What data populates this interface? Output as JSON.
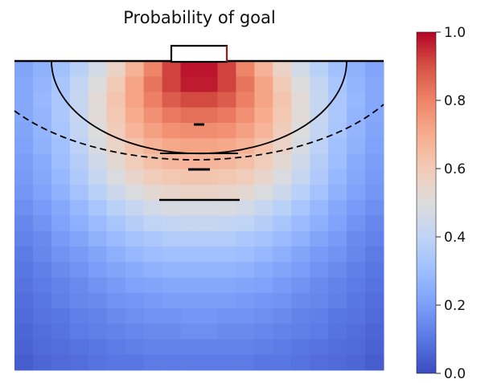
{
  "chart_data": {
    "type": "heatmap",
    "title": "Probability of goal",
    "xlabel": "",
    "ylabel": "",
    "colormap": "coolwarm",
    "colorbar": {
      "vmin": 0.0,
      "vmax": 1.0,
      "ticks": [
        0.0,
        0.2,
        0.4,
        0.6,
        0.8,
        1.0
      ],
      "tick_labels": [
        "0.0",
        "0.2",
        "0.4",
        "0.6",
        "0.8",
        "1.0"
      ],
      "colors": [
        "#3b4cc0",
        "#5977e3",
        "#7b9ff9",
        "#9ebeff",
        "#c0d4f5",
        "#dddcdc",
        "#f2cbb7",
        "#f7ac8e",
        "#ee8468",
        "#d65244",
        "#b40426"
      ]
    },
    "grid": {
      "rows": 20,
      "cols": 20,
      "origin": "top",
      "values": [
        [
          0.22,
          0.26,
          0.31,
          0.38,
          0.46,
          0.56,
          0.68,
          0.8,
          0.92,
          0.98,
          0.98,
          0.92,
          0.8,
          0.68,
          0.56,
          0.46,
          0.38,
          0.31,
          0.26,
          0.22
        ],
        [
          0.23,
          0.27,
          0.33,
          0.41,
          0.5,
          0.6,
          0.72,
          0.83,
          0.92,
          0.97,
          0.97,
          0.92,
          0.83,
          0.72,
          0.6,
          0.5,
          0.41,
          0.33,
          0.27,
          0.23
        ],
        [
          0.23,
          0.28,
          0.34,
          0.42,
          0.52,
          0.62,
          0.72,
          0.81,
          0.88,
          0.91,
          0.91,
          0.88,
          0.81,
          0.72,
          0.62,
          0.52,
          0.42,
          0.34,
          0.28,
          0.23
        ],
        [
          0.23,
          0.27,
          0.34,
          0.42,
          0.52,
          0.61,
          0.7,
          0.77,
          0.82,
          0.84,
          0.84,
          0.82,
          0.77,
          0.7,
          0.61,
          0.52,
          0.42,
          0.34,
          0.27,
          0.23
        ],
        [
          0.22,
          0.27,
          0.33,
          0.41,
          0.5,
          0.59,
          0.67,
          0.73,
          0.77,
          0.78,
          0.78,
          0.77,
          0.73,
          0.67,
          0.59,
          0.5,
          0.41,
          0.33,
          0.27,
          0.22
        ],
        [
          0.21,
          0.26,
          0.31,
          0.39,
          0.48,
          0.56,
          0.63,
          0.68,
          0.71,
          0.72,
          0.72,
          0.71,
          0.68,
          0.63,
          0.56,
          0.48,
          0.39,
          0.31,
          0.26,
          0.21
        ],
        [
          0.2,
          0.24,
          0.3,
          0.37,
          0.45,
          0.53,
          0.59,
          0.64,
          0.66,
          0.67,
          0.67,
          0.66,
          0.64,
          0.59,
          0.53,
          0.45,
          0.37,
          0.3,
          0.24,
          0.2
        ],
        [
          0.19,
          0.23,
          0.28,
          0.35,
          0.42,
          0.49,
          0.55,
          0.59,
          0.61,
          0.62,
          0.62,
          0.61,
          0.59,
          0.55,
          0.49,
          0.42,
          0.35,
          0.28,
          0.23,
          0.19
        ],
        [
          0.18,
          0.21,
          0.26,
          0.32,
          0.38,
          0.44,
          0.49,
          0.53,
          0.55,
          0.56,
          0.56,
          0.55,
          0.53,
          0.49,
          0.44,
          0.38,
          0.32,
          0.26,
          0.21,
          0.18
        ],
        [
          0.16,
          0.19,
          0.23,
          0.28,
          0.33,
          0.38,
          0.42,
          0.46,
          0.48,
          0.48,
          0.48,
          0.48,
          0.46,
          0.42,
          0.38,
          0.33,
          0.28,
          0.23,
          0.19,
          0.16
        ],
        [
          0.14,
          0.17,
          0.21,
          0.25,
          0.29,
          0.33,
          0.37,
          0.4,
          0.41,
          0.42,
          0.42,
          0.41,
          0.4,
          0.37,
          0.33,
          0.29,
          0.25,
          0.21,
          0.17,
          0.14
        ],
        [
          0.13,
          0.15,
          0.19,
          0.22,
          0.26,
          0.29,
          0.32,
          0.34,
          0.36,
          0.36,
          0.36,
          0.36,
          0.34,
          0.32,
          0.29,
          0.26,
          0.22,
          0.19,
          0.15,
          0.13
        ],
        [
          0.11,
          0.14,
          0.17,
          0.19,
          0.22,
          0.25,
          0.28,
          0.3,
          0.31,
          0.31,
          0.31,
          0.31,
          0.3,
          0.28,
          0.25,
          0.22,
          0.19,
          0.17,
          0.14,
          0.11
        ],
        [
          0.1,
          0.12,
          0.15,
          0.17,
          0.2,
          0.22,
          0.24,
          0.26,
          0.27,
          0.27,
          0.27,
          0.27,
          0.26,
          0.24,
          0.22,
          0.2,
          0.17,
          0.15,
          0.12,
          0.1
        ],
        [
          0.09,
          0.11,
          0.13,
          0.15,
          0.17,
          0.19,
          0.21,
          0.22,
          0.23,
          0.23,
          0.23,
          0.23,
          0.22,
          0.21,
          0.19,
          0.17,
          0.15,
          0.13,
          0.11,
          0.09
        ],
        [
          0.08,
          0.1,
          0.12,
          0.14,
          0.15,
          0.17,
          0.18,
          0.19,
          0.2,
          0.2,
          0.2,
          0.2,
          0.19,
          0.18,
          0.17,
          0.15,
          0.14,
          0.12,
          0.1,
          0.08
        ],
        [
          0.07,
          0.09,
          0.1,
          0.12,
          0.13,
          0.15,
          0.16,
          0.17,
          0.17,
          0.18,
          0.18,
          0.17,
          0.17,
          0.16,
          0.15,
          0.13,
          0.12,
          0.1,
          0.09,
          0.07
        ],
        [
          0.06,
          0.08,
          0.09,
          0.11,
          0.12,
          0.13,
          0.14,
          0.15,
          0.15,
          0.16,
          0.16,
          0.15,
          0.15,
          0.14,
          0.13,
          0.12,
          0.11,
          0.09,
          0.08,
          0.06
        ],
        [
          0.05,
          0.07,
          0.08,
          0.09,
          0.1,
          0.11,
          0.12,
          0.13,
          0.13,
          0.13,
          0.13,
          0.13,
          0.13,
          0.12,
          0.11,
          0.1,
          0.09,
          0.08,
          0.07,
          0.05
        ],
        [
          0.04,
          0.06,
          0.07,
          0.08,
          0.09,
          0.1,
          0.1,
          0.11,
          0.11,
          0.11,
          0.11,
          0.11,
          0.11,
          0.1,
          0.1,
          0.09,
          0.08,
          0.07,
          0.06,
          0.04
        ]
      ]
    },
    "overlay": {
      "line_color": "#000000",
      "goal_color": "#ff0000",
      "shapes": [
        "goal",
        "goal-area-arc",
        "free-throw-dashed-arc",
        "line-markers"
      ]
    }
  }
}
